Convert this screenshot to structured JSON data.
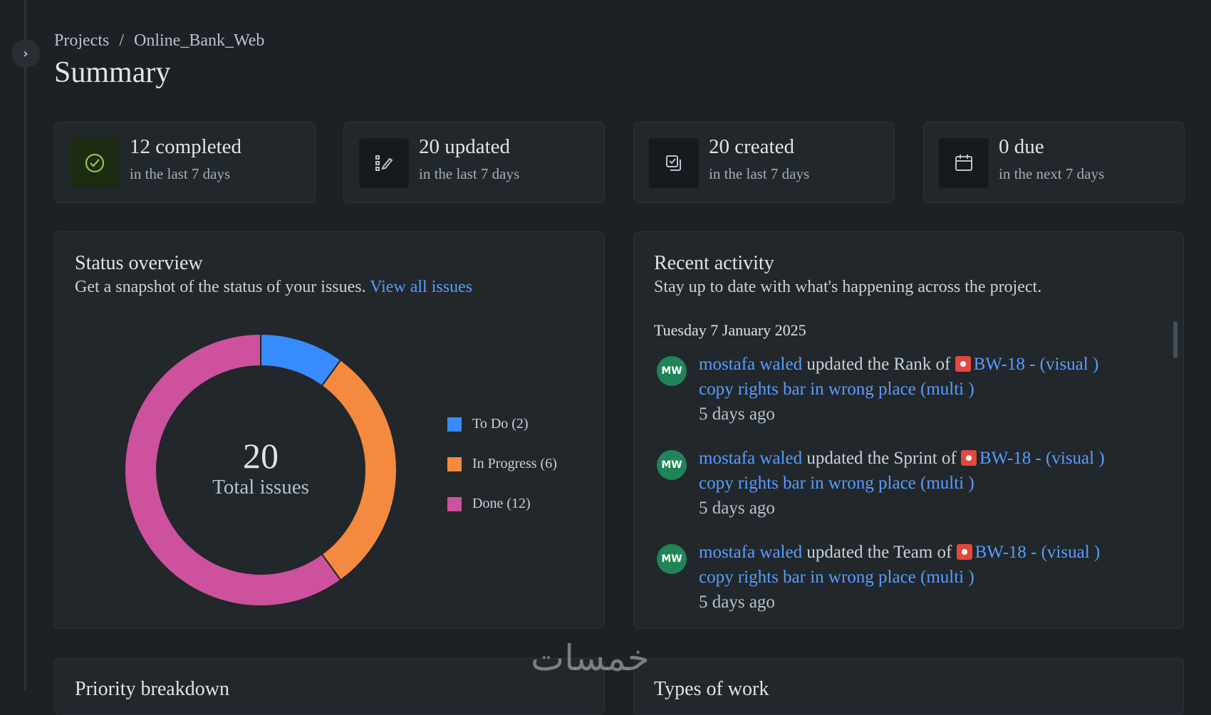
{
  "breadcrumb": {
    "root": "Projects",
    "separator": "/",
    "project": "Online_Bank_Web"
  },
  "page_title": "Summary",
  "stats": [
    {
      "value": "12 completed",
      "period": "in the last 7 days",
      "icon": "check-circle-icon"
    },
    {
      "value": "20 updated",
      "period": "in the last 7 days",
      "icon": "edit-list-icon"
    },
    {
      "value": "20 created",
      "period": "in the last 7 days",
      "icon": "create-issue-icon"
    },
    {
      "value": "0 due",
      "period": "in the next 7 days",
      "icon": "calendar-icon"
    }
  ],
  "status_overview": {
    "title": "Status overview",
    "subtitle": "Get a snapshot of the status of your issues.",
    "link": "View all issues",
    "total": "20",
    "total_label": "Total issues"
  },
  "chart_data": {
    "type": "pie",
    "categories": [
      "To Do",
      "In Progress",
      "Done"
    ],
    "values": [
      2,
      6,
      12
    ],
    "colors": [
      "#388bff",
      "#f38a3f",
      "#cd519d"
    ],
    "legend": [
      "To Do (2)",
      "In Progress (6)",
      "Done (12)"
    ],
    "legend_placement": "right"
  },
  "recent_activity": {
    "title": "Recent activity",
    "subtitle": "Stay up to date with what's happening across the project.",
    "date": "Tuesday 7 January 2025",
    "items": [
      {
        "initials": "MW",
        "user": "mostafa waled",
        "action": "updated the Rank of",
        "issue": "BW-18 - (visual ) copy rights bar in wrong place (multi )",
        "time": "5 days ago"
      },
      {
        "initials": "MW",
        "user": "mostafa waled",
        "action": "updated the Sprint of",
        "issue": "BW-18 - (visual ) copy rights bar in wrong place (multi )",
        "time": "5 days ago"
      },
      {
        "initials": "MW",
        "user": "mostafa waled",
        "action": "updated the Team of",
        "issue": "BW-18 - (visual ) copy rights bar in wrong place (multi )",
        "time": "5 days ago"
      }
    ]
  },
  "bottom_panels": {
    "left_title": "Priority breakdown",
    "right_title": "Types of work"
  },
  "watermark": "خمسات"
}
